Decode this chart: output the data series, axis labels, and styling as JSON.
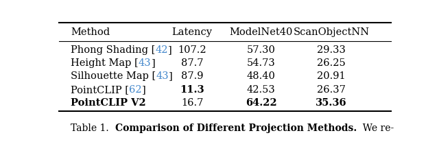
{
  "headers": [
    "Method",
    "Latency",
    "ModelNet40",
    "ScanObjectNN"
  ],
  "rows": [
    {
      "method_parts": [
        {
          "text": "Phong Shading [",
          "bold": false,
          "color": "black"
        },
        {
          "text": "42",
          "bold": false,
          "color": "#4488CC"
        },
        {
          "text": "]",
          "bold": false,
          "color": "black"
        }
      ],
      "latency": "107.2",
      "modelnet40": "57.30",
      "scanobjectnn": "29.33",
      "latency_bold": false,
      "modelnet40_bold": false,
      "scanobjectnn_bold": false
    },
    {
      "method_parts": [
        {
          "text": "Height Map [",
          "bold": false,
          "color": "black"
        },
        {
          "text": "43",
          "bold": false,
          "color": "#4488CC"
        },
        {
          "text": "]",
          "bold": false,
          "color": "black"
        }
      ],
      "latency": "87.7",
      "modelnet40": "54.73",
      "scanobjectnn": "26.25",
      "latency_bold": false,
      "modelnet40_bold": false,
      "scanobjectnn_bold": false
    },
    {
      "method_parts": [
        {
          "text": "Silhouette Map [",
          "bold": false,
          "color": "black"
        },
        {
          "text": "43",
          "bold": false,
          "color": "#4488CC"
        },
        {
          "text": "]",
          "bold": false,
          "color": "black"
        }
      ],
      "latency": "87.9",
      "modelnet40": "48.40",
      "scanobjectnn": "20.91",
      "latency_bold": false,
      "modelnet40_bold": false,
      "scanobjectnn_bold": false
    },
    {
      "method_parts": [
        {
          "text": "PointCLIP [",
          "bold": false,
          "color": "black"
        },
        {
          "text": "62",
          "bold": false,
          "color": "#4488CC"
        },
        {
          "text": "]",
          "bold": false,
          "color": "black"
        }
      ],
      "latency": "11.3",
      "modelnet40": "42.53",
      "scanobjectnn": "26.37",
      "latency_bold": true,
      "modelnet40_bold": false,
      "scanobjectnn_bold": false
    },
    {
      "method_parts": [
        {
          "text": "PointCLIP V2",
          "bold": true,
          "color": "black"
        }
      ],
      "latency": "16.7",
      "modelnet40": "64.22",
      "scanobjectnn": "35.36",
      "latency_bold": false,
      "modelnet40_bold": true,
      "scanobjectnn_bold": true
    }
  ],
  "background_color": "#ffffff",
  "header_fontsize": 10.5,
  "data_fontsize": 10.5,
  "caption_fontsize": 10.0
}
